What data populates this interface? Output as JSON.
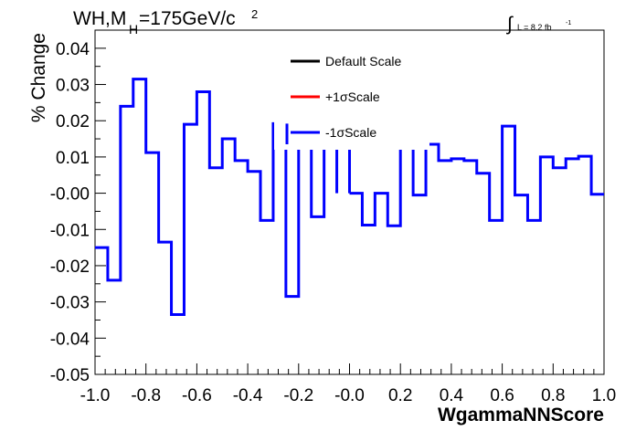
{
  "chart_data": {
    "type": "line",
    "title_main": "WH,M",
    "title_sub": "H",
    "title_rest": "=175GeV/c",
    "title_sup": "2",
    "lumi_label": "L = 8.2 fb",
    "lumi_sup": "-1",
    "xlabel": "WgammaNNScore",
    "ylabel": "% Change",
    "xlim": [
      -1.0,
      1.0
    ],
    "ylim": [
      -0.05,
      0.045
    ],
    "grid": false,
    "legend_position": "top-center",
    "x_ticks": [
      {
        "v": -1.0,
        "label": "-1.0"
      },
      {
        "v": -0.8,
        "label": "-0.8"
      },
      {
        "v": -0.6,
        "label": "-0.6"
      },
      {
        "v": -0.4,
        "label": "-0.4"
      },
      {
        "v": -0.2,
        "label": "-0.2"
      },
      {
        "v": 0.0,
        "label": "-0.0"
      },
      {
        "v": 0.2,
        "label": "0.2"
      },
      {
        "v": 0.4,
        "label": "0.4"
      },
      {
        "v": 0.6,
        "label": "0.6"
      },
      {
        "v": 0.8,
        "label": "0.8"
      },
      {
        "v": 1.0,
        "label": "1.0"
      }
    ],
    "y_ticks": [
      {
        "v": 0.04,
        "label": "0.04"
      },
      {
        "v": 0.03,
        "label": "0.03"
      },
      {
        "v": 0.02,
        "label": "0.02"
      },
      {
        "v": 0.01,
        "label": "0.01"
      },
      {
        "v": 0.0,
        "label": "-0.00"
      },
      {
        "v": -0.01,
        "label": "-0.01"
      },
      {
        "v": -0.02,
        "label": "-0.02"
      },
      {
        "v": -0.03,
        "label": "-0.03"
      },
      {
        "v": -0.04,
        "label": "-0.04"
      },
      {
        "v": -0.05,
        "label": "-0.05"
      }
    ],
    "bin_edges_start": -1.0,
    "bin_width": 0.05,
    "series": [
      {
        "name": "Default Scale",
        "color": "#000000",
        "values": []
      },
      {
        "name": "+1σScale",
        "color": "#ff0000",
        "values": []
      },
      {
        "name": "-1σScale",
        "color": "#0000ff",
        "values": [
          -0.015,
          -0.024,
          0.024,
          0.0315,
          0.0112,
          -0.0135,
          -0.0335,
          0.019,
          0.028,
          0.007,
          0.015,
          0.009,
          0.006,
          -0.0075,
          0.0192,
          -0.0285,
          0.0135,
          -0.0065,
          0.0135,
          null,
          0.0,
          -0.0088,
          0.0,
          -0.009,
          0.0135,
          -0.0005,
          0.0135,
          0.009,
          0.0095,
          0.009,
          0.0055,
          -0.0075,
          0.0185,
          -0.0005,
          -0.0075,
          0.01,
          0.007,
          0.0095,
          0.0102,
          -0.0003
        ]
      }
    ]
  }
}
